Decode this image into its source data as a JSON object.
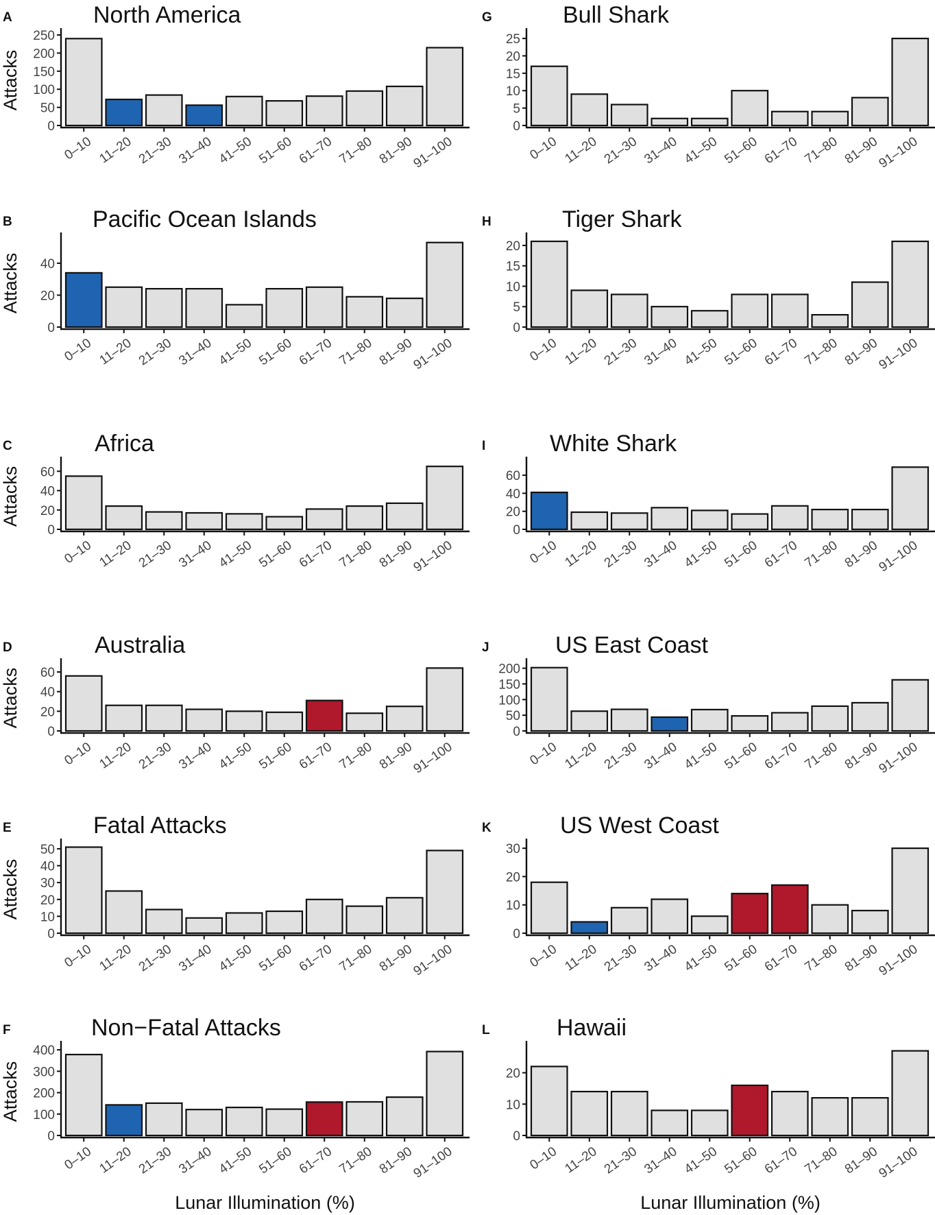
{
  "colors": {
    "default": "#e0e0e0",
    "low": "#1f64b0",
    "high": "#b0182b",
    "stroke": "#111111"
  },
  "x_axis_label": "Lunar Illumination (%)",
  "chart_data": [
    {
      "letter": "A",
      "type": "bar",
      "title": "North America",
      "ylabel": "Attacks",
      "ylim": [
        0,
        250
      ],
      "yticks": [
        0,
        50,
        100,
        150,
        200,
        250
      ],
      "categories": [
        "0–10",
        "11–20",
        "21–30",
        "31–40",
        "41–50",
        "51–60",
        "61–70",
        "71–80",
        "81–90",
        "91–100"
      ],
      "values": [
        240,
        72,
        84,
        56,
        80,
        68,
        81,
        95,
        108,
        215
      ],
      "highlight": [
        "default",
        "low",
        "default",
        "low",
        "default",
        "default",
        "default",
        "default",
        "default",
        "default"
      ]
    },
    {
      "letter": "B",
      "type": "bar",
      "title": "Pacific Ocean Islands",
      "ylabel": "Attacks",
      "ylim": [
        0,
        55
      ],
      "yticks": [
        0,
        20,
        40
      ],
      "categories": [
        "0–10",
        "11–20",
        "21–30",
        "31–40",
        "41–50",
        "51–60",
        "61–70",
        "71–80",
        "81–90",
        "91–100"
      ],
      "values": [
        34,
        25,
        24,
        24,
        14,
        24,
        25,
        19,
        18,
        53
      ],
      "highlight": [
        "low",
        "default",
        "default",
        "default",
        "default",
        "default",
        "default",
        "default",
        "default",
        "default"
      ]
    },
    {
      "letter": "C",
      "type": "bar",
      "title": "Africa",
      "ylabel": "Attacks",
      "ylim": [
        0,
        68
      ],
      "yticks": [
        0,
        20,
        40,
        60
      ],
      "categories": [
        "0–10",
        "11–20",
        "21–30",
        "31–40",
        "41–50",
        "51–60",
        "61–70",
        "71–80",
        "81–90",
        "91–100"
      ],
      "values": [
        55,
        24,
        18,
        17,
        16,
        13,
        21,
        24,
        27,
        65
      ],
      "highlight": [
        "default",
        "default",
        "default",
        "default",
        "default",
        "default",
        "default",
        "default",
        "default",
        "default"
      ]
    },
    {
      "letter": "D",
      "type": "bar",
      "title": "Australia",
      "ylabel": "Attacks",
      "ylim": [
        0,
        67
      ],
      "yticks": [
        0,
        20,
        40,
        60
      ],
      "categories": [
        "0–10",
        "11–20",
        "21–30",
        "31–40",
        "41–50",
        "51–60",
        "61–70",
        "71–80",
        "81–90",
        "91–100"
      ],
      "values": [
        56,
        26,
        26,
        22,
        20,
        19,
        31,
        18,
        25,
        64
      ],
      "highlight": [
        "default",
        "default",
        "default",
        "default",
        "default",
        "default",
        "high",
        "default",
        "default",
        "default"
      ]
    },
    {
      "letter": "E",
      "type": "bar",
      "title": "Fatal Attacks",
      "ylabel": "Attacks",
      "ylim": [
        0,
        52
      ],
      "yticks": [
        0,
        10,
        20,
        30,
        40,
        50
      ],
      "categories": [
        "0–10",
        "11–20",
        "21–30",
        "31–40",
        "41–50",
        "51–60",
        "61–70",
        "71–80",
        "81–90",
        "91–100"
      ],
      "values": [
        51,
        25,
        14,
        9,
        12,
        13,
        20,
        16,
        21,
        49
      ],
      "highlight": [
        "default",
        "default",
        "default",
        "default",
        "default",
        "default",
        "default",
        "default",
        "default",
        "default"
      ]
    },
    {
      "letter": "F",
      "type": "bar",
      "title": "Non−Fatal Attacks",
      "ylabel": "Attacks",
      "ylim": [
        0,
        410
      ],
      "yticks": [
        0,
        100,
        200,
        300,
        400
      ],
      "categories": [
        "0–10",
        "11–20",
        "21–30",
        "31–40",
        "41–50",
        "51–60",
        "61–70",
        "71–80",
        "81–90",
        "91–100"
      ],
      "values": [
        378,
        143,
        151,
        121,
        131,
        123,
        156,
        157,
        179,
        392
      ],
      "highlight": [
        "default",
        "low",
        "default",
        "default",
        "default",
        "default",
        "high",
        "default",
        "default",
        "default"
      ]
    },
    {
      "letter": "G",
      "type": "bar",
      "title": "Bull Shark",
      "ylabel": "",
      "ylim": [
        0,
        26
      ],
      "yticks": [
        0,
        5,
        10,
        15,
        20,
        25
      ],
      "categories": [
        "0–10",
        "11–20",
        "21–30",
        "31–40",
        "41–50",
        "51–60",
        "61–70",
        "71–80",
        "81–90",
        "91–100"
      ],
      "values": [
        17,
        9,
        6,
        2,
        2,
        10,
        4,
        4,
        8,
        25
      ],
      "highlight": [
        "default",
        "default",
        "default",
        "default",
        "default",
        "default",
        "default",
        "default",
        "default",
        "default"
      ]
    },
    {
      "letter": "H",
      "type": "bar",
      "title": "Tiger Shark",
      "ylabel": "",
      "ylim": [
        0,
        21.5
      ],
      "yticks": [
        0,
        5,
        10,
        15,
        20
      ],
      "categories": [
        "0–10",
        "11–20",
        "21–30",
        "31–40",
        "41–50",
        "51–60",
        "61–70",
        "71–80",
        "81–90",
        "91–100"
      ],
      "values": [
        21,
        9,
        8,
        5,
        4,
        8,
        8,
        3,
        11,
        21
      ],
      "highlight": [
        "default",
        "default",
        "default",
        "default",
        "default",
        "default",
        "default",
        "default",
        "default",
        "default"
      ]
    },
    {
      "letter": "I",
      "type": "bar",
      "title": "White Shark",
      "ylabel": "",
      "ylim": [
        0,
        73
      ],
      "yticks": [
        0,
        20,
        40,
        60
      ],
      "categories": [
        "0–10",
        "11–20",
        "21–30",
        "31–40",
        "41–50",
        "51–60",
        "61–70",
        "71–80",
        "81–90",
        "91–100"
      ],
      "values": [
        41,
        19,
        18,
        24,
        21,
        17,
        26,
        22,
        22,
        69
      ],
      "highlight": [
        "low",
        "default",
        "default",
        "default",
        "default",
        "default",
        "default",
        "default",
        "default",
        "default"
      ]
    },
    {
      "letter": "J",
      "type": "bar",
      "title": "US East Coast",
      "ylabel": "",
      "ylim": [
        0,
        210
      ],
      "yticks": [
        0,
        50,
        100,
        150,
        200
      ],
      "categories": [
        "0–10",
        "11–20",
        "21–30",
        "31–40",
        "41–50",
        "51–60",
        "61–70",
        "71–80",
        "81–90",
        "91–100"
      ],
      "values": [
        202,
        63,
        69,
        44,
        68,
        48,
        58,
        79,
        90,
        163
      ],
      "highlight": [
        "default",
        "default",
        "default",
        "low",
        "default",
        "default",
        "default",
        "default",
        "default",
        "default"
      ]
    },
    {
      "letter": "K",
      "type": "bar",
      "title": "US West Coast",
      "ylabel": "",
      "ylim": [
        0,
        31
      ],
      "yticks": [
        0,
        10,
        20,
        30
      ],
      "categories": [
        "0–10",
        "11–20",
        "21–30",
        "31–40",
        "41–50",
        "51–60",
        "61–70",
        "71–80",
        "81–90",
        "91–100"
      ],
      "values": [
        18,
        4,
        9,
        12,
        6,
        14,
        17,
        10,
        8,
        30
      ],
      "highlight": [
        "default",
        "low",
        "default",
        "default",
        "default",
        "high",
        "high",
        "default",
        "default",
        "default"
      ]
    },
    {
      "letter": "L",
      "type": "bar",
      "title": "Hawaii",
      "ylabel": "",
      "ylim": [
        0,
        28
      ],
      "yticks": [
        0,
        10,
        20
      ],
      "categories": [
        "0–10",
        "11–20",
        "21–30",
        "31–40",
        "41–50",
        "51–60",
        "61–70",
        "71–80",
        "81–90",
        "91–100"
      ],
      "values": [
        22,
        14,
        14,
        8,
        8,
        16,
        14,
        12,
        12,
        27
      ],
      "highlight": [
        "default",
        "default",
        "default",
        "default",
        "default",
        "high",
        "default",
        "default",
        "default",
        "default"
      ]
    }
  ]
}
